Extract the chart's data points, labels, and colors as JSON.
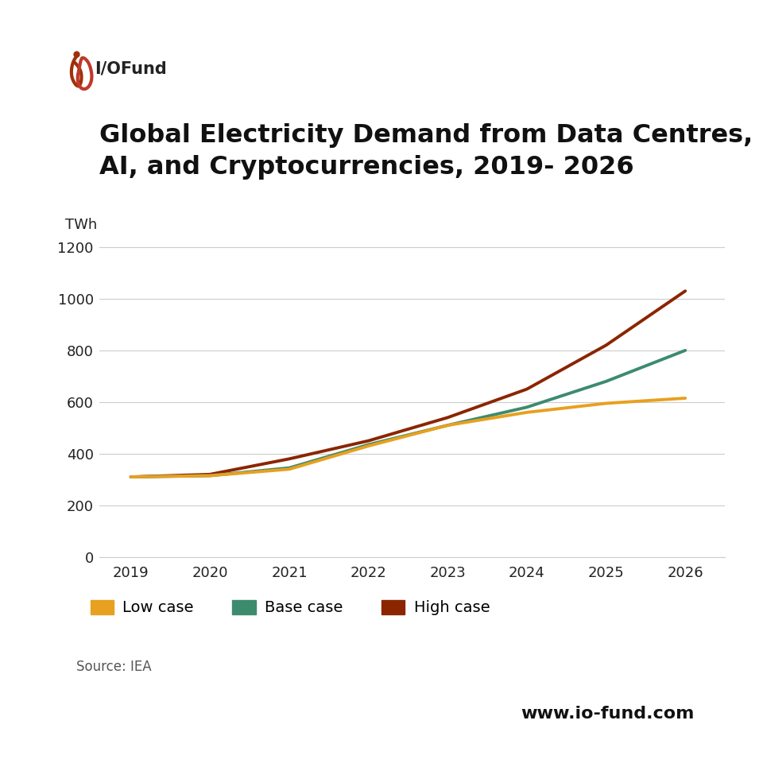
{
  "title_line1": "Global Electricity Demand from Data Centres,",
  "title_line2": "AI, and Cryptocurrencies, 2019- 2026",
  "ylabel": "TWh",
  "years": [
    2019,
    2020,
    2021,
    2022,
    2023,
    2024,
    2025,
    2026
  ],
  "low_case": [
    310,
    315,
    340,
    430,
    510,
    560,
    595,
    615
  ],
  "base_case": [
    310,
    315,
    345,
    435,
    510,
    580,
    680,
    800
  ],
  "high_case": [
    310,
    320,
    380,
    450,
    540,
    650,
    820,
    1030
  ],
  "low_color": "#E8A020",
  "base_color": "#3D8B6E",
  "high_color": "#8B2500",
  "grid_color": "#cccccc",
  "ylim": [
    0,
    1300
  ],
  "yticks": [
    0,
    200,
    400,
    600,
    800,
    1000,
    1200
  ],
  "source_text": "Source: IEA",
  "website_text": "www.io-fund.com",
  "title_fontsize": 23,
  "axis_fontsize": 13,
  "legend_fontsize": 14,
  "line_width": 2.8,
  "logo_color_left": "#C0392B",
  "logo_color_right": "#C0392B",
  "logo_text": "I/OFund"
}
